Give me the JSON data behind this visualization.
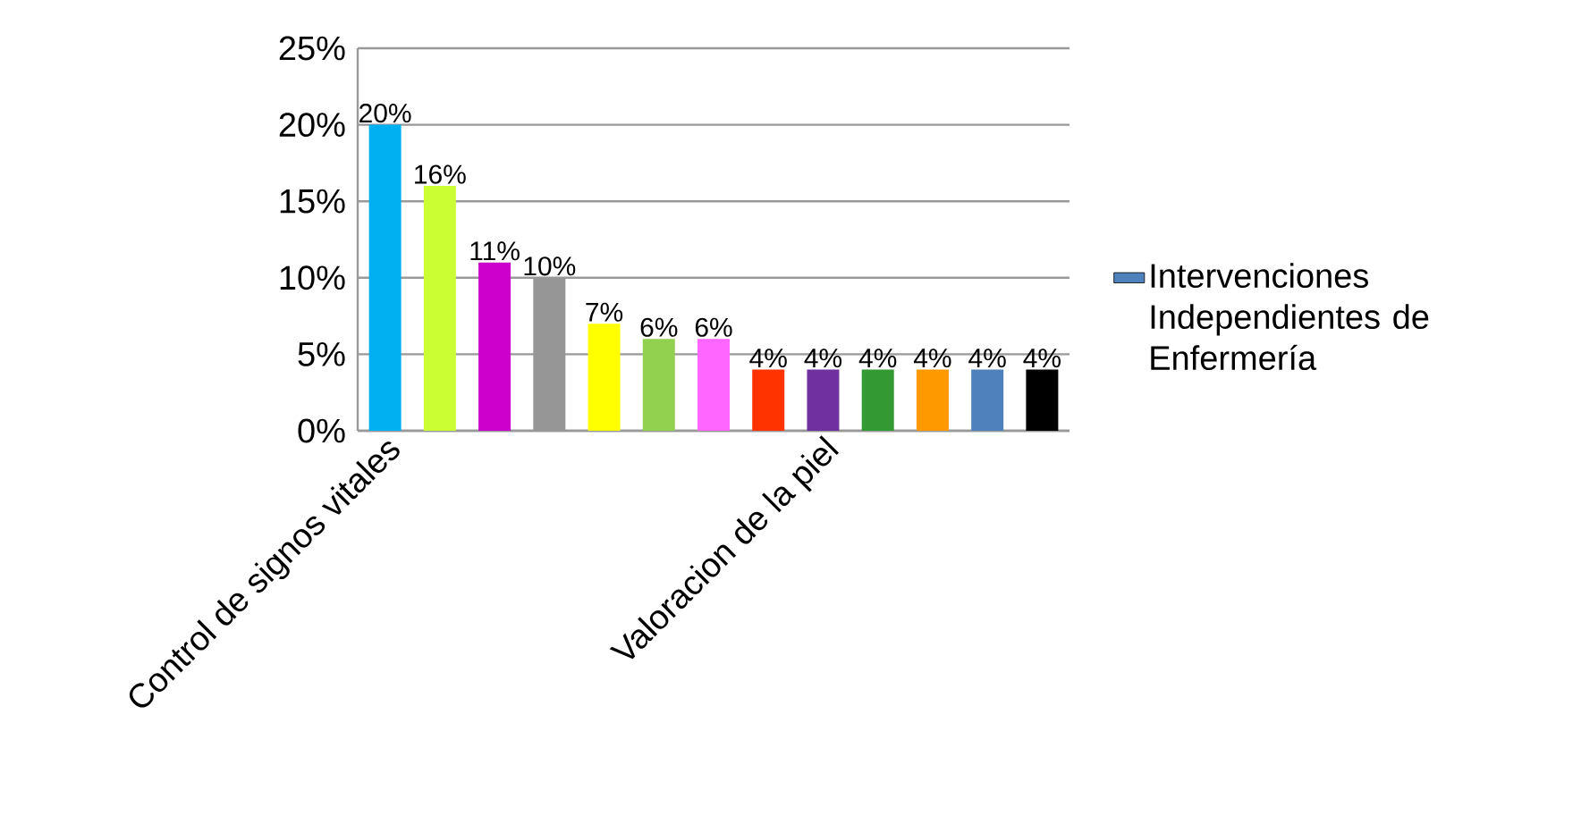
{
  "chart_data": {
    "type": "bar",
    "categories": [
      "Control de signos vitales",
      null,
      null,
      null,
      null,
      null,
      null,
      null,
      "Valoracion de la piel",
      null,
      null,
      null,
      null
    ],
    "series": [
      {
        "name": "Intervenciones Independientes de Enfermería",
        "color": "#4f81bd",
        "values": [
          20,
          16,
          11,
          10,
          7,
          6,
          6,
          4,
          4,
          4,
          4,
          4,
          4
        ],
        "colors": [
          "#00b0f0",
          "#ccff33",
          "#cc00cc",
          "#969696",
          "#ffff00",
          "#92d050",
          "#ff66ff",
          "#ff3300",
          "#7030a0",
          "#339933",
          "#ff9900",
          "#4f81bd",
          "#000000"
        ],
        "value_labels": [
          "20%",
          "16%",
          "11%",
          "10%",
          "7%",
          "6%",
          "6%",
          "4%",
          "4%",
          "4%",
          "4%",
          "4%",
          "4%"
        ]
      }
    ],
    "ylim": [
      0,
      25
    ],
    "yticks": [
      {
        "value": 0,
        "label": "0%"
      },
      {
        "value": 5,
        "label": "5%"
      },
      {
        "value": 10,
        "label": "10%"
      },
      {
        "value": 15,
        "label": "15%"
      },
      {
        "value": 20,
        "label": "20%"
      },
      {
        "value": 25,
        "label": "25%"
      }
    ],
    "grid": "y",
    "legend": "right"
  }
}
